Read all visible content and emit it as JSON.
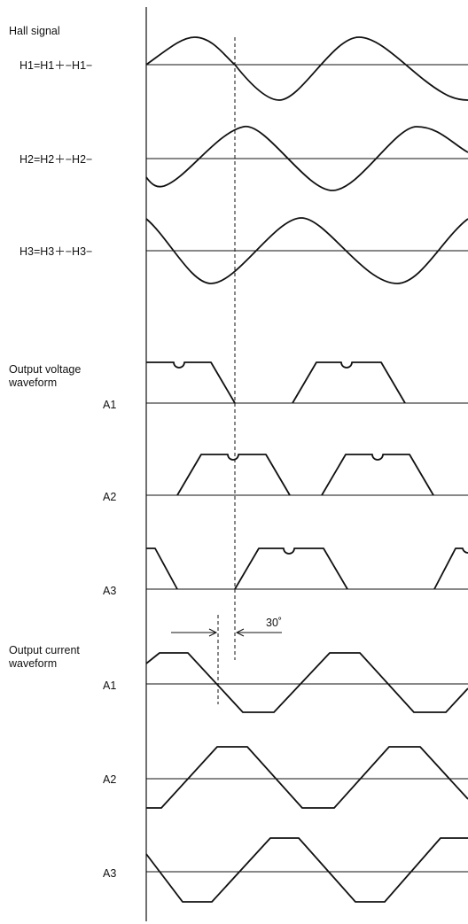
{
  "labels": {
    "hall_title": "Hall signal",
    "h1": "H1=H1＋−H1−",
    "h2": "H2=H2＋−H2−",
    "h3": "H3=H3＋−H3−",
    "voltage_title_1": "Output voltage",
    "voltage_title_2": "waveform",
    "v_a1": "A1",
    "v_a2": "A2",
    "v_a3": "A3",
    "current_title_1": "Output current",
    "current_title_2": "waveform",
    "c_a1": "A1",
    "c_a2": "A2",
    "c_a3": "A3",
    "angle": "30˚"
  }
}
